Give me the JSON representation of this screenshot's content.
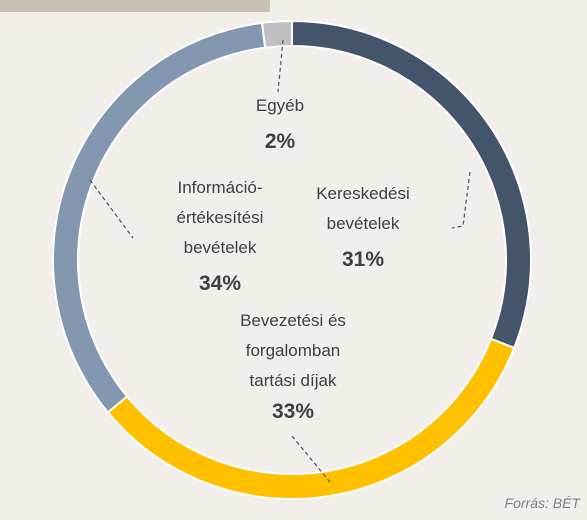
{
  "chart_data": {
    "type": "donut",
    "categories": [
      "Kereskedési\nbevételek",
      "Bevezetési és\nforgalomban\ntartási díjak",
      "Információ-\nértékesítési\nbevételek",
      "Egyéb"
    ],
    "values": [
      31,
      33,
      34,
      2
    ],
    "value_labels": [
      "31%",
      "33%",
      "34%",
      "2%"
    ],
    "colors": [
      "#44546a",
      "#ffc000",
      "#8497b0",
      "#bfbfbf"
    ],
    "source": "Forrás: BÉT"
  }
}
